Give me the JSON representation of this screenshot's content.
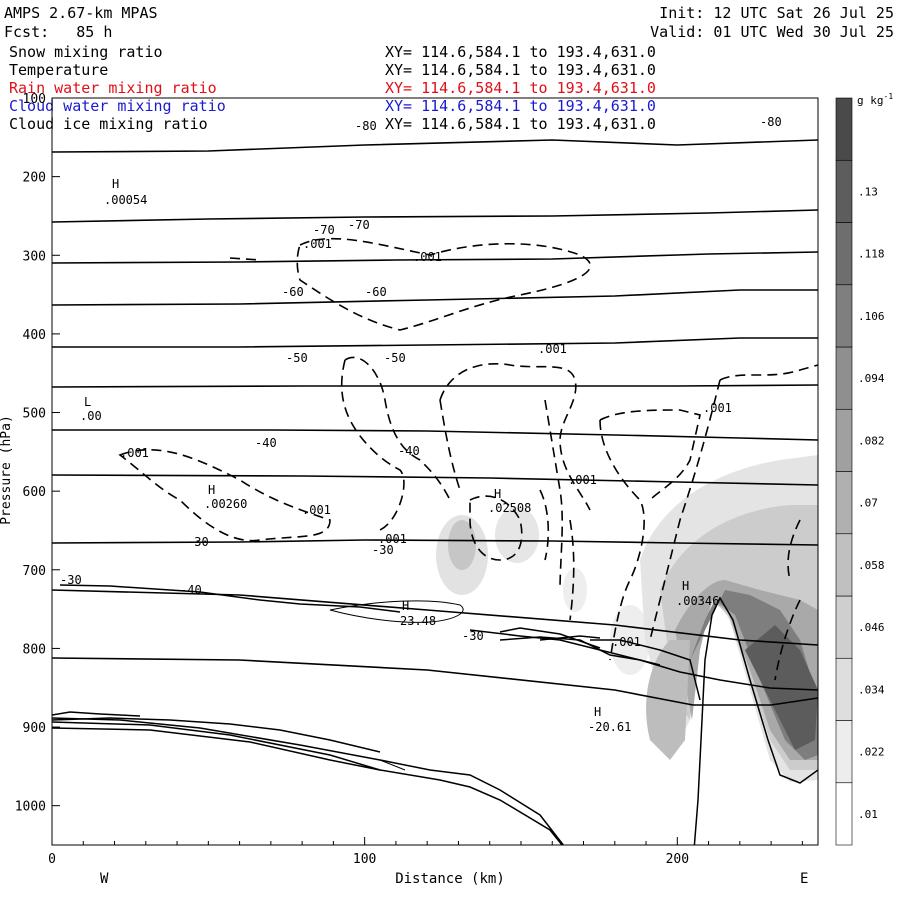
{
  "header": {
    "model": "AMPS 2.67-km MPAS",
    "forecast": "Fcst:   85 h",
    "init": "Init: 12 UTC Sat 26 Jul 25",
    "valid": "Valid: 01 UTC Wed 30 Jul 25"
  },
  "fields": [
    {
      "name": "Snow mixing ratio",
      "xy": "XY= 114.6,584.1 to 193.4,631.0",
      "color": "#000000"
    },
    {
      "name": "Temperature",
      "xy": "XY= 114.6,584.1 to 193.4,631.0",
      "color": "#000000"
    },
    {
      "name": "Rain water mixing ratio",
      "xy": "XY= 114.6,584.1 to 193.4,631.0",
      "color": "#e0101a"
    },
    {
      "name": "Cloud water mixing ratio",
      "xy": "XY= 114.6,584.1 to 193.4,631.0",
      "color": "#1a1ad0"
    },
    {
      "name": "Cloud ice mixing ratio",
      "xy": "XY= 114.6,584.1 to 193.4,631.0",
      "color": "#000000"
    }
  ],
  "chart_data": {
    "type": "contour cross-section",
    "xlabel": "Distance (km)",
    "ylabel": "Pressure (hPa)",
    "xlim": [
      0,
      245
    ],
    "ylim": [
      1050,
      100
    ],
    "x_ticks": [
      "0",
      "100",
      "200"
    ],
    "y_ticks": [
      "100",
      "200",
      "300",
      "400",
      "500",
      "600",
      "700",
      "800",
      "900",
      "1000"
    ],
    "x_end_labels": {
      "left": "W",
      "right": "E"
    },
    "colorbar": {
      "unit": "g kg",
      "unit_exp": "-1",
      "levels": [
        ".01",
        ".022",
        ".034",
        ".046",
        ".058",
        ".07",
        ".082",
        ".094",
        ".106",
        ".118",
        ".13"
      ],
      "colors": [
        "#ffffff",
        "#ededed",
        "#dedede",
        "#cfcfcf",
        "#c0c0c0",
        "#b0b0b0",
        "#a0a0a0",
        "#8f8f8f",
        "#7f7f7f",
        "#6e6e6e",
        "#5d5d5d",
        "#4a4a4a"
      ]
    },
    "temperature_isotherms": [
      {
        "label": "-80",
        "points": [
          [
            0,
            152
          ],
          [
            50,
            151
          ],
          [
            100,
            145
          ],
          [
            160,
            140
          ],
          [
            200,
            145
          ],
          [
            245,
            140
          ]
        ]
      },
      {
        "label": "",
        "points": [
          [
            0,
            222
          ],
          [
            50,
            219
          ],
          [
            100,
            217
          ],
          [
            160,
            216
          ],
          [
            210,
            213
          ],
          [
            245,
            210
          ]
        ]
      },
      {
        "label": "-70",
        "points": [
          [
            0,
            263
          ],
          [
            60,
            262
          ],
          [
            110,
            260
          ],
          [
            160,
            259
          ],
          [
            210,
            254
          ],
          [
            245,
            252
          ]
        ]
      },
      {
        "label": "",
        "points": [
          [
            0,
            305
          ],
          [
            60,
            304
          ],
          [
            120,
            300
          ],
          [
            180,
            296
          ],
          [
            220,
            290
          ],
          [
            245,
            290
          ]
        ]
      },
      {
        "label": "-60",
        "points": [
          [
            0,
            347
          ],
          [
            60,
            347
          ],
          [
            120,
            345
          ],
          [
            180,
            343
          ],
          [
            220,
            338
          ],
          [
            245,
            338
          ]
        ]
      },
      {
        "label": "",
        "points": [
          [
            0,
            387
          ],
          [
            80,
            386
          ],
          [
            140,
            386
          ],
          [
            200,
            386
          ],
          [
            245,
            385
          ]
        ]
      },
      {
        "label": "-50",
        "points": [
          [
            0,
            430
          ],
          [
            70,
            430
          ],
          [
            120,
            431
          ],
          [
            180,
            435
          ],
          [
            220,
            438
          ],
          [
            245,
            440
          ]
        ]
      },
      {
        "label": "",
        "points": [
          [
            0,
            475
          ],
          [
            80,
            476
          ],
          [
            140,
            478
          ],
          [
            200,
            482
          ],
          [
            245,
            485
          ]
        ]
      },
      {
        "label": "-40",
        "points": [
          [
            0,
            543
          ],
          [
            60,
            542
          ],
          [
            100,
            540
          ],
          [
            160,
            541
          ],
          [
            200,
            543
          ],
          [
            245,
            545
          ]
        ]
      },
      {
        "label": "",
        "points": [
          [
            0,
            590
          ],
          [
            60,
            595
          ],
          [
            120,
            610
          ],
          [
            180,
            625
          ],
          [
            220,
            640
          ],
          [
            245,
            645
          ]
        ]
      },
      {
        "label": "-30",
        "points": [
          [
            0,
            658
          ],
          [
            60,
            660
          ],
          [
            120,
            670
          ],
          [
            180,
            690
          ],
          [
            205,
            705
          ],
          [
            230,
            705
          ],
          [
            245,
            698
          ]
        ]
      }
    ],
    "contour_labels": [
      ".001",
      ".00054",
      ".00260",
      ".02508",
      ".00346",
      "23.48",
      "-20.61",
      "H",
      "L",
      ".00"
    ]
  }
}
